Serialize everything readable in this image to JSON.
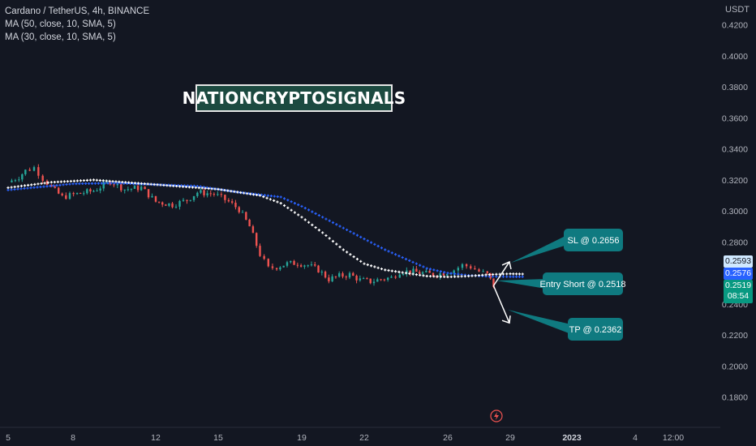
{
  "header": {
    "symbol_line": "Cardano / TetherUS, 4h, BINANCE",
    "indicators": [
      "MA (50, close, 10, SMA, 5)",
      "MA (30, close, 10, SMA, 5)"
    ]
  },
  "watermark": "NATIONCRYPTOSIGNALS",
  "currency": "USDT",
  "badges": {
    "sl_price": "0.2593",
    "ma_price": "0.2576",
    "last_price": "0.2519",
    "countdown": "08:54"
  },
  "callouts": {
    "sl": "SL @ 0.2656",
    "entry": "Entry Short @ 0.2518",
    "tp": "TP @ 0.2362"
  },
  "colors": {
    "background": "#131722",
    "up": "#26a69a",
    "down": "#ef5350",
    "ma50": "#2962ff",
    "ma30": "#ffffff",
    "callout": "#0f7a80",
    "last_price_badge": "#089981"
  },
  "chart_data": {
    "type": "line",
    "timeframe": "4h",
    "x_tick_labels": [
      "5",
      "8",
      "12",
      "15",
      "19",
      "22",
      "26",
      "29",
      "2023",
      "4",
      "12:00"
    ],
    "y_tick_labels": [
      "0.4200",
      "0.4000",
      "0.3800",
      "0.3600",
      "0.3400",
      "0.3200",
      "0.3000",
      "0.2800",
      "0.2400",
      "0.2200",
      "0.2000",
      "0.1800"
    ],
    "ylim": [
      0.17,
      0.43
    ],
    "x_day_range": [
      5,
      40
    ],
    "price_path": [
      {
        "day": 5.0,
        "price": 0.3185
      },
      {
        "day": 5.5,
        "price": 0.322
      },
      {
        "day": 5.8,
        "price": 0.326
      },
      {
        "day": 6.2,
        "price": 0.328
      },
      {
        "day": 6.6,
        "price": 0.321
      },
      {
        "day": 7.0,
        "price": 0.315
      },
      {
        "day": 7.5,
        "price": 0.309
      },
      {
        "day": 8.2,
        "price": 0.311
      },
      {
        "day": 9.0,
        "price": 0.313
      },
      {
        "day": 9.8,
        "price": 0.319
      },
      {
        "day": 10.5,
        "price": 0.314
      },
      {
        "day": 11.3,
        "price": 0.315
      },
      {
        "day": 12.0,
        "price": 0.306
      },
      {
        "day": 12.8,
        "price": 0.304
      },
      {
        "day": 13.5,
        "price": 0.307
      },
      {
        "day": 14.0,
        "price": 0.312
      },
      {
        "day": 14.8,
        "price": 0.311
      },
      {
        "day": 15.5,
        "price": 0.306
      },
      {
        "day": 16.0,
        "price": 0.301
      },
      {
        "day": 16.5,
        "price": 0.29
      },
      {
        "day": 17.0,
        "price": 0.272
      },
      {
        "day": 17.4,
        "price": 0.263
      },
      {
        "day": 17.8,
        "price": 0.264
      },
      {
        "day": 18.3,
        "price": 0.266
      },
      {
        "day": 18.8,
        "price": 0.2665
      },
      {
        "day": 19.3,
        "price": 0.265
      },
      {
        "day": 19.8,
        "price": 0.262
      },
      {
        "day": 20.3,
        "price": 0.256
      },
      {
        "day": 20.8,
        "price": 0.258
      },
      {
        "day": 21.3,
        "price": 0.259
      },
      {
        "day": 21.8,
        "price": 0.2555
      },
      {
        "day": 22.3,
        "price": 0.2545
      },
      {
        "day": 22.8,
        "price": 0.256
      },
      {
        "day": 23.3,
        "price": 0.257
      },
      {
        "day": 23.7,
        "price": 0.261
      },
      {
        "day": 24.2,
        "price": 0.261
      },
      {
        "day": 24.8,
        "price": 0.26
      },
      {
        "day": 25.3,
        "price": 0.259
      },
      {
        "day": 25.8,
        "price": 0.26
      },
      {
        "day": 26.3,
        "price": 0.262
      },
      {
        "day": 26.7,
        "price": 0.265
      },
      {
        "day": 27.1,
        "price": 0.264
      },
      {
        "day": 27.5,
        "price": 0.261
      },
      {
        "day": 27.9,
        "price": 0.259
      },
      {
        "day": 28.2,
        "price": 0.2519
      }
    ],
    "series": [
      {
        "name": "MA (50, close, 10, SMA, 5)",
        "color": "#2962ff",
        "points": [
          {
            "day": 5.0,
            "value": 0.3135
          },
          {
            "day": 8.0,
            "value": 0.3175
          },
          {
            "day": 10.0,
            "value": 0.318
          },
          {
            "day": 12.0,
            "value": 0.317
          },
          {
            "day": 14.0,
            "value": 0.316
          },
          {
            "day": 16.0,
            "value": 0.312
          },
          {
            "day": 18.0,
            "value": 0.309
          },
          {
            "day": 19.0,
            "value": 0.303
          },
          {
            "day": 20.0,
            "value": 0.296
          },
          {
            "day": 21.0,
            "value": 0.289
          },
          {
            "day": 22.0,
            "value": 0.282
          },
          {
            "day": 23.0,
            "value": 0.275
          },
          {
            "day": 24.0,
            "value": 0.269
          },
          {
            "day": 25.0,
            "value": 0.263
          },
          {
            "day": 26.0,
            "value": 0.26
          },
          {
            "day": 27.0,
            "value": 0.2585
          },
          {
            "day": 28.0,
            "value": 0.2578
          },
          {
            "day": 29.0,
            "value": 0.2576
          },
          {
            "day": 30.0,
            "value": 0.2576
          }
        ]
      },
      {
        "name": "MA (30, close, 10, SMA, 5)",
        "color": "#ffffff",
        "points": [
          {
            "day": 5.0,
            "value": 0.315
          },
          {
            "day": 7.0,
            "value": 0.3185
          },
          {
            "day": 9.0,
            "value": 0.32
          },
          {
            "day": 11.0,
            "value": 0.318
          },
          {
            "day": 13.0,
            "value": 0.316
          },
          {
            "day": 15.0,
            "value": 0.314
          },
          {
            "day": 17.0,
            "value": 0.31
          },
          {
            "day": 18.0,
            "value": 0.305
          },
          {
            "day": 19.0,
            "value": 0.296
          },
          {
            "day": 20.0,
            "value": 0.286
          },
          {
            "day": 21.0,
            "value": 0.275
          },
          {
            "day": 22.0,
            "value": 0.266
          },
          {
            "day": 23.0,
            "value": 0.262
          },
          {
            "day": 24.0,
            "value": 0.26
          },
          {
            "day": 25.0,
            "value": 0.258
          },
          {
            "day": 26.0,
            "value": 0.2575
          },
          {
            "day": 27.0,
            "value": 0.258
          },
          {
            "day": 28.0,
            "value": 0.259
          },
          {
            "day": 29.0,
            "value": 0.2595
          },
          {
            "day": 30.0,
            "value": 0.2593
          }
        ]
      }
    ],
    "trade_levels": {
      "sl": 0.2656,
      "entry": 0.2518,
      "tp": 0.2362
    }
  }
}
